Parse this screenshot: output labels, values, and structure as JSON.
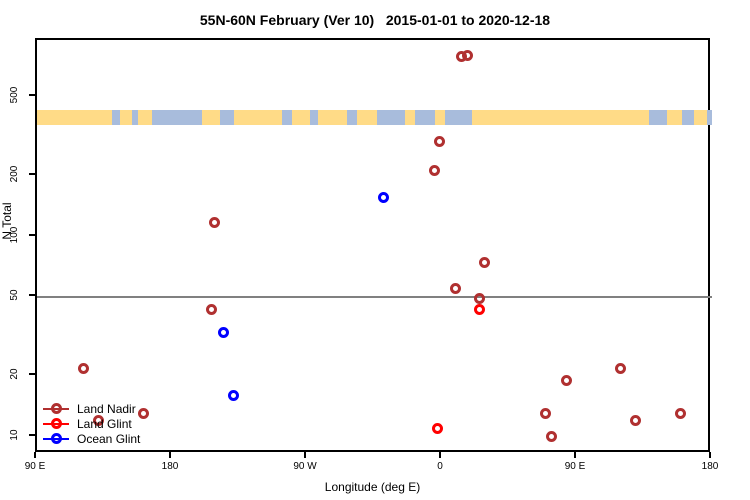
{
  "title": "55N-60N February (Ver 10)   2015-01-01 to 2020-12-18",
  "colors": {
    "land_nadir": "#B03030",
    "land_glint": "#FF0000",
    "ocean_glint": "#0000FF",
    "map_land": "#FFDB87",
    "map_ocean": "#A8BCDC",
    "reference_line": "#808080",
    "axis": "#000000"
  },
  "chart_data": {
    "type": "scatter",
    "title": "55N-60N February (Ver 10)   2015-01-01 to 2020-12-18",
    "xlabel": "Longitude (deg E)",
    "ylabel": "N Total",
    "x_axis": {
      "lim": [
        90,
        540
      ],
      "ticks": [
        90,
        180,
        270,
        360,
        450,
        540
      ],
      "tick_labels": [
        "90 E",
        "180",
        "90 W",
        "0",
        "90 E",
        "180"
      ],
      "note": "longitude axis wraps eastward starting at 90E"
    },
    "y_axis": {
      "scale": "log",
      "lim": [
        8.2,
        960
      ],
      "ticks": [
        10,
        20,
        50,
        100,
        200,
        500
      ],
      "tick_labels": [
        "10",
        "20",
        "50",
        "100",
        "200",
        "500"
      ]
    },
    "reference_line_y": 50,
    "grid": false,
    "legend_position": "bottom-left",
    "series": [
      {
        "name": "Land Nadir",
        "color": "#B03030",
        "marker": "open-circle",
        "points": [
          {
            "lon": 372.7,
            "n": 790
          },
          {
            "lon": 377.3,
            "n": 800
          },
          {
            "lon": 358.0,
            "n": 300
          },
          {
            "lon": 354.7,
            "n": 215
          },
          {
            "lon": 208.0,
            "n": 117
          },
          {
            "lon": 388.0,
            "n": 74
          },
          {
            "lon": 369.3,
            "n": 55
          },
          {
            "lon": 384.7,
            "n": 49
          },
          {
            "lon": 206.0,
            "n": 43
          },
          {
            "lon": 120.7,
            "n": 22
          },
          {
            "lon": 478.7,
            "n": 22
          },
          {
            "lon": 442.7,
            "n": 19
          },
          {
            "lon": 161.3,
            "n": 13
          },
          {
            "lon": 131.3,
            "n": 12
          },
          {
            "lon": 428.7,
            "n": 13
          },
          {
            "lon": 488.7,
            "n": 12
          },
          {
            "lon": 518.7,
            "n": 13
          },
          {
            "lon": 432.7,
            "n": 10
          }
        ]
      },
      {
        "name": "Land Glint",
        "color": "#FF0000",
        "marker": "open-circle",
        "points": [
          {
            "lon": 384.7,
            "n": 43
          },
          {
            "lon": 356.7,
            "n": 11
          }
        ]
      },
      {
        "name": "Ocean Glint",
        "color": "#0000FF",
        "marker": "open-circle",
        "points": [
          {
            "lon": 320.7,
            "n": 156
          },
          {
            "lon": 214.0,
            "n": 33
          },
          {
            "lon": 220.7,
            "n": 16
          }
        ]
      }
    ],
    "map_strip": {
      "description": "55N-60N latitude band land/ocean map",
      "land_color": "#FFDB87",
      "ocean_color": "#A8BCDC",
      "n_range": [
        360,
        430
      ],
      "ocean_segments_lon": [
        [
          140.0,
          145.3
        ],
        [
          153.3,
          157.3
        ],
        [
          166.7,
          200.0
        ],
        [
          212.0,
          221.3
        ],
        [
          253.3,
          260.0
        ],
        [
          272.0,
          277.3
        ],
        [
          296.7,
          303.3
        ],
        [
          316.7,
          335.3
        ],
        [
          342.0,
          355.3
        ],
        [
          362.0,
          380.0
        ],
        [
          498.0,
          510.0
        ],
        [
          520.0,
          528.0
        ],
        [
          536.7,
          540.0
        ]
      ]
    }
  }
}
